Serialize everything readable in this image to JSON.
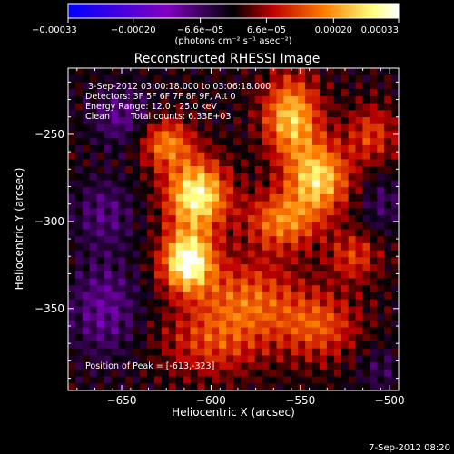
{
  "chart_data": {
    "type": "heatmap",
    "title": "Reconstructed RHESSI Image",
    "xlabel": "Heliocentric X (arcsec)",
    "ylabel": "Heliocentric Y (arcsec)",
    "xlim": [
      -680,
      -495
    ],
    "ylim": [
      -397,
      -212
    ],
    "x_ticks": [
      -650,
      -600,
      -550,
      -500
    ],
    "x_tick_labels": [
      "−650",
      "−600",
      "−550",
      "−500"
    ],
    "y_ticks": [
      -250,
      -300,
      -350
    ],
    "y_tick_labels": [
      "−250",
      "−300",
      "−350"
    ],
    "colorbar": {
      "min": -0.00033,
      "max": 0.00033,
      "ticks": [
        -0.00033,
        -0.0002,
        -6.6e-05,
        6.6e-05,
        0.0002,
        0.00033
      ],
      "tick_labels": [
        "−0.00033",
        "−0.00020",
        "−6.6e−05",
        "6.6e−05",
        "0.00020",
        "0.00033"
      ],
      "unit_label": "(photons cm⁻² s⁻¹ asec⁻²)",
      "colormap": [
        "#0000ff",
        "#8000c0",
        "#000000",
        "#c00000",
        "#ff8000",
        "#ffff80",
        "#ffffff"
      ]
    },
    "annotations": {
      "time_range": "3-Sep-2012 03:00:18.000 to 03:06:18.000",
      "detectors": "Detectors: 3F 5F 6F 7F 8F 9F, Att 0",
      "energy_range": "Energy Range: 12.0 - 25.0 keV",
      "clean_label": "Clean",
      "total_counts": "Total counts: 6.33E+03",
      "peak_position": "Position of Peak = [-613,-323]"
    },
    "peak": [
      -613,
      -323
    ],
    "sources": [
      {
        "x": -613,
        "y": -323,
        "sx": 10,
        "sy": 12,
        "amp": 0.00033
      },
      {
        "x": -608,
        "y": -285,
        "sx": 12,
        "sy": 14,
        "amp": 0.0003
      },
      {
        "x": -625,
        "y": -255,
        "sx": 10,
        "sy": 10,
        "amp": 0.00018
      },
      {
        "x": -555,
        "y": -240,
        "sx": 11,
        "sy": 16,
        "amp": 0.00024
      },
      {
        "x": -540,
        "y": -275,
        "sx": 12,
        "sy": 14,
        "amp": 0.00025
      },
      {
        "x": -560,
        "y": -300,
        "sx": 14,
        "sy": 12,
        "amp": 0.00018
      },
      {
        "x": -580,
        "y": -345,
        "sx": 20,
        "sy": 16,
        "amp": 0.00015
      },
      {
        "x": -540,
        "y": -360,
        "sx": 16,
        "sy": 14,
        "amp": 0.00014
      },
      {
        "x": -600,
        "y": -370,
        "sx": 20,
        "sy": 14,
        "amp": 0.00011
      },
      {
        "x": -520,
        "y": -320,
        "sx": 10,
        "sy": 10,
        "amp": 0.00012
      },
      {
        "x": -510,
        "y": -250,
        "sx": 10,
        "sy": 12,
        "amp": 0.00012
      },
      {
        "x": -660,
        "y": -295,
        "sx": 12,
        "sy": 14,
        "amp": -8e-05
      },
      {
        "x": -660,
        "y": -350,
        "sx": 14,
        "sy": 20,
        "amp": -0.0001
      },
      {
        "x": -650,
        "y": -240,
        "sx": 12,
        "sy": 12,
        "amp": -9e-05
      },
      {
        "x": -505,
        "y": -290,
        "sx": 8,
        "sy": 12,
        "amp": -6e-05
      },
      {
        "x": -505,
        "y": -385,
        "sx": 10,
        "sy": 10,
        "amp": -5e-05
      }
    ]
  },
  "footer": {
    "timestamp": "7-Sep-2012 08:20"
  }
}
